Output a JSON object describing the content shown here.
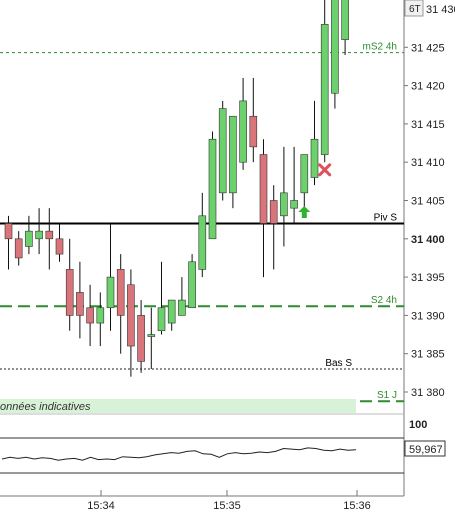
{
  "colors": {
    "up_candle": "#6cd06c",
    "down_candle": "#d9757a",
    "wick": "#111111",
    "green_level": "#2e8b2e",
    "pivot": "#000000",
    "grid": "#999999",
    "banner_bg": "#d8f2d8"
  },
  "price_axis": {
    "ticks": [
      "31 430",
      "31 425",
      "31 420",
      "31 415",
      "31 410",
      "31 405",
      "31 400",
      "31 395",
      "31 390",
      "31 385",
      "31 380"
    ],
    "badge": "6T"
  },
  "levels": {
    "ms2_4h": "mS2 4h",
    "piv_s": "Piv S",
    "s2_4h": "S2 4h",
    "overlap": "Bas S",
    "s1_j": "S1 J"
  },
  "banner": {
    "text": "onnées indicatives"
  },
  "oscillator": {
    "top_label": "100",
    "value_label": "59,967",
    "values": [
      44,
      47,
      45,
      47,
      44,
      46,
      45,
      42,
      44,
      45,
      42,
      47,
      43,
      44,
      43,
      48,
      47,
      46,
      48,
      51,
      53,
      55,
      54,
      57,
      58,
      53,
      52,
      47,
      53,
      55,
      53,
      54,
      56,
      55,
      57,
      62,
      61,
      60,
      63,
      62,
      59,
      58,
      61,
      59,
      60
    ]
  },
  "time_axis": {
    "labels": [
      "15:34",
      "15:35",
      "15:36"
    ]
  },
  "chart_data": {
    "type": "candlestick",
    "y_range": [
      31377.5,
      31431
    ],
    "series": [
      {
        "o": 31402,
        "h": 31403,
        "l": 31396,
        "c": 31400
      },
      {
        "o": 31400,
        "h": 31401,
        "l": 31396.5,
        "c": 31397.5
      },
      {
        "o": 31399,
        "h": 31403,
        "l": 31398,
        "c": 31401
      },
      {
        "o": 31400,
        "h": 31404,
        "l": 31398,
        "c": 31401
      },
      {
        "o": 31401,
        "h": 31404,
        "l": 31396,
        "c": 31400
      },
      {
        "o": 31400,
        "h": 31402,
        "l": 31397,
        "c": 31398
      },
      {
        "o": 31396,
        "h": 31400,
        "l": 31388,
        "c": 31390
      },
      {
        "o": 31393,
        "h": 31397,
        "l": 31387,
        "c": 31390
      },
      {
        "o": 31391,
        "h": 31394,
        "l": 31386,
        "c": 31389
      },
      {
        "o": 31389,
        "h": 31393,
        "l": 31386,
        "c": 31391
      },
      {
        "o": 31391,
        "h": 31402,
        "l": 31388,
        "c": 31395
      },
      {
        "o": 31396,
        "h": 31398,
        "l": 31385,
        "c": 31390
      },
      {
        "o": 31394,
        "h": 31396,
        "l": 31382,
        "c": 31386
      },
      {
        "o": 31390,
        "h": 31392,
        "l": 31382.5,
        "c": 31384
      },
      {
        "o": 31387.5,
        "h": 31391,
        "l": 31383,
        "c": 31387.5
      },
      {
        "o": 31388,
        "h": 31397,
        "l": 31387.5,
        "c": 31391
      },
      {
        "o": 31389,
        "h": 31392,
        "l": 31388,
        "c": 31392
      },
      {
        "o": 31390,
        "h": 31395,
        "l": 31390,
        "c": 31392
      },
      {
        "o": 31391,
        "h": 31398,
        "l": 31391,
        "c": 31397
      },
      {
        "o": 31396,
        "h": 31406,
        "l": 31395,
        "c": 31403
      },
      {
        "o": 31400,
        "h": 31414,
        "l": 31400,
        "c": 31413
      },
      {
        "o": 31406,
        "h": 31418,
        "l": 31405,
        "c": 31417
      },
      {
        "o": 31406,
        "h": 31416,
        "l": 31404,
        "c": 31416
      },
      {
        "o": 31410,
        "h": 31421,
        "l": 31409,
        "c": 31418
      },
      {
        "o": 31416,
        "h": 31421,
        "l": 31410,
        "c": 31412
      },
      {
        "o": 31411,
        "h": 31413,
        "l": 31395,
        "c": 31402
      },
      {
        "o": 31405,
        "h": 31407,
        "l": 31396,
        "c": 31402
      },
      {
        "o": 31403,
        "h": 31412,
        "l": 31399,
        "c": 31406
      },
      {
        "o": 31404,
        "h": 31412,
        "l": 31402,
        "c": 31405
      },
      {
        "o": 31406,
        "h": 31411,
        "l": 31403,
        "c": 31411
      },
      {
        "o": 31408,
        "h": 31418,
        "l": 31407,
        "c": 31413
      },
      {
        "o": 31411,
        "h": 31432,
        "l": 31410,
        "c": 31428
      },
      {
        "o": 31419,
        "h": 31432,
        "l": 31417,
        "c": 31432
      },
      {
        "o": 31426,
        "h": 31432,
        "l": 31424,
        "c": 31432
      }
    ],
    "markers": [
      {
        "type": "arrow-up",
        "bar": 29,
        "price": 31403.5
      },
      {
        "type": "cross",
        "bar": 31,
        "price": 31409
      }
    ]
  }
}
